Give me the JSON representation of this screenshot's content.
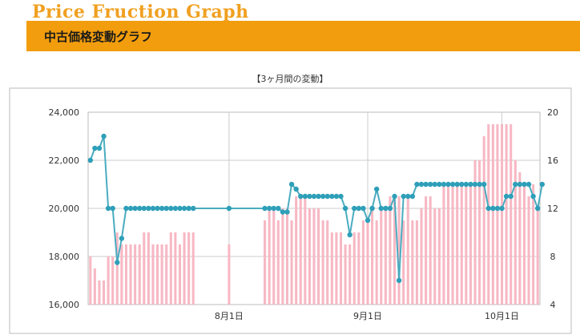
{
  "header": {
    "logo_text": "Price Fruction Graph",
    "title": "中古価格変動グラフ"
  },
  "chart_data": {
    "type": "bar+line",
    "title": "【3ヶ月間の変動】",
    "x_labels": [
      "8月1日",
      "9月1日",
      "10月1日"
    ],
    "left_axis": {
      "min": 16000,
      "max": 24000,
      "ticks": [
        "16,000",
        "18,000",
        "20,000",
        "22,000",
        "24,000"
      ]
    },
    "right_axis": {
      "min": 4,
      "max": 20,
      "ticks": [
        "4",
        "8",
        "12",
        "16",
        "20"
      ]
    },
    "grid": true,
    "colors": {
      "bars": "#f7b8c4",
      "line": "#4aacc0",
      "markers": "#2e9fb8",
      "grid": "#cccccc"
    },
    "series": [
      {
        "type": "bar",
        "axis": "left",
        "values": [
          18000,
          17500,
          17000,
          17000,
          18000,
          18000,
          19000,
          18500,
          18500,
          18500,
          18500,
          18500,
          19000,
          19000,
          18500,
          18500,
          18500,
          18500,
          19000,
          19000,
          18500,
          19000,
          19000,
          19000,
          null,
          null,
          null,
          null,
          null,
          null,
          null,
          18500,
          null,
          null,
          null,
          null,
          null,
          null,
          null,
          19500,
          20000,
          20000,
          19500,
          20000,
          20000,
          19500,
          20500,
          20500,
          20500,
          20000,
          20000,
          20000,
          19500,
          19500,
          19000,
          19000,
          19000,
          18500,
          18500,
          19000,
          19000,
          19500,
          19500,
          20000,
          19500,
          20000,
          20000,
          20500,
          20500,
          20500,
          19500,
          20500,
          19500,
          19500,
          20000,
          20500,
          20500,
          20000,
          20000,
          21000,
          21000,
          21000,
          21000,
          21000,
          21000,
          21000,
          22000,
          22000,
          23000,
          23500,
          23500,
          23500,
          23500,
          23500,
          23500,
          22000,
          21500,
          21000,
          20500,
          21000,
          20000
        ]
      },
      {
        "type": "line",
        "axis": "right",
        "values": [
          16,
          17,
          17,
          18,
          12,
          12,
          7.5,
          9.5,
          12,
          12,
          12,
          12,
          12,
          12,
          12,
          12,
          12,
          12,
          12,
          12,
          12,
          12,
          12,
          12,
          null,
          null,
          null,
          null,
          null,
          null,
          null,
          12,
          null,
          null,
          null,
          null,
          null,
          null,
          null,
          12,
          12,
          12,
          12,
          11.7,
          11.7,
          14,
          13.6,
          13,
          13,
          13,
          13,
          13,
          13,
          13,
          13,
          13,
          13,
          12,
          9.8,
          12,
          12,
          12,
          11,
          12,
          13.6,
          12,
          12,
          12,
          13,
          6,
          13,
          13,
          13,
          14,
          14,
          14,
          14,
          14,
          14,
          14,
          14,
          14,
          14,
          14,
          14,
          14,
          14,
          14,
          14,
          12,
          12,
          12,
          12,
          13,
          13,
          14,
          14,
          14,
          14,
          13,
          12,
          14
        ]
      }
    ]
  }
}
